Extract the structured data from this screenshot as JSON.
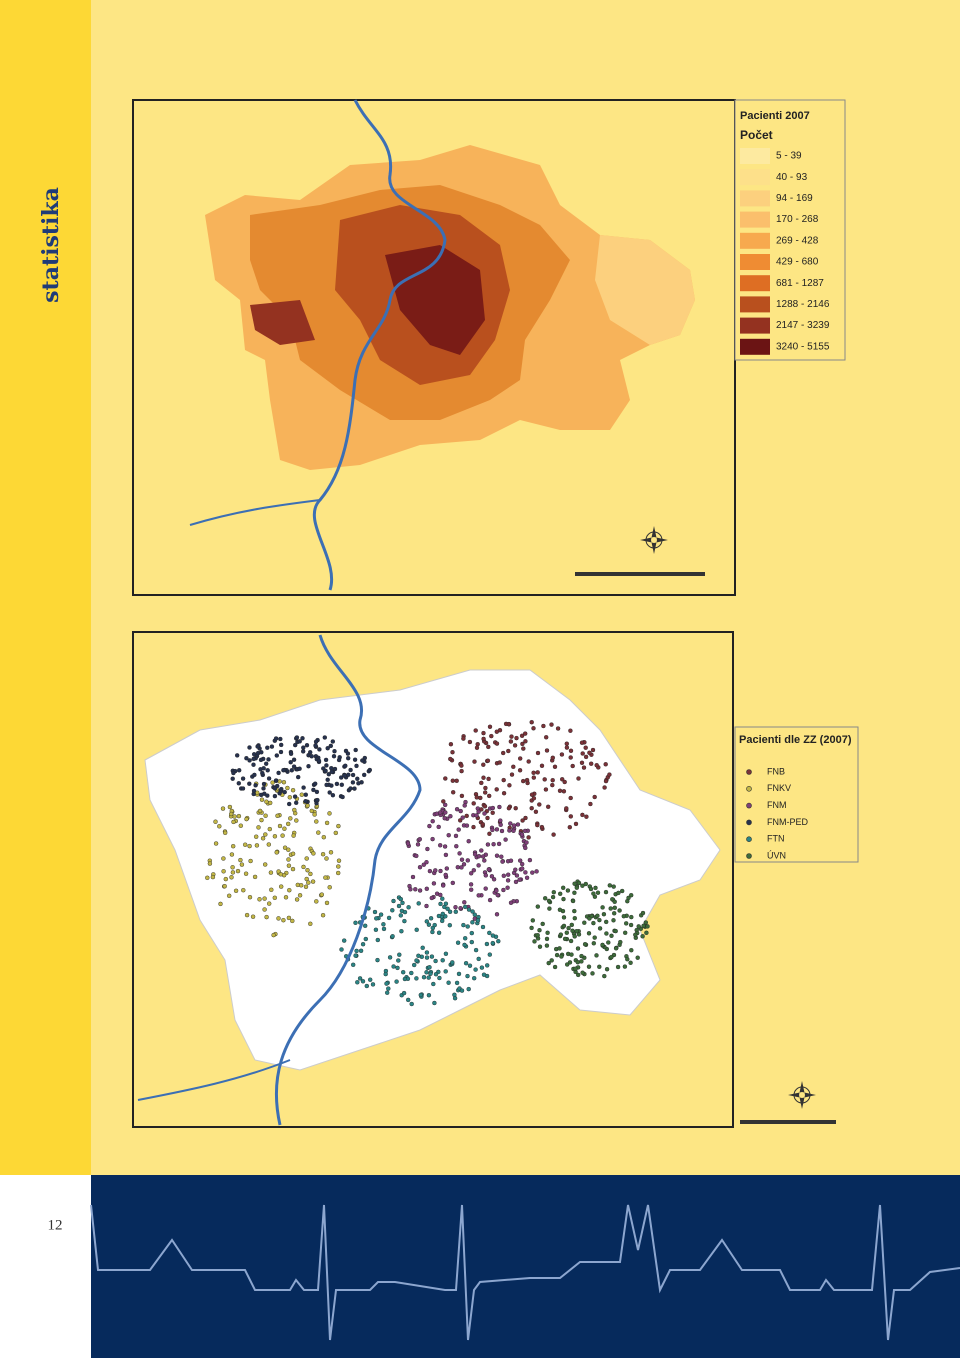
{
  "sidebar_title": "statistika",
  "page_number": "12",
  "map1": {
    "legend_title": "Pacienti 2007",
    "legend_subtitle": "Počet",
    "classes": [
      {
        "label": "5 - 39",
        "color": "#fdeaa0"
      },
      {
        "label": "40 - 93",
        "color": "#fde08a"
      },
      {
        "label": "94 - 169",
        "color": "#fcd07e"
      },
      {
        "label": "170 - 268",
        "color": "#fbbf6c"
      },
      {
        "label": "269 - 428",
        "color": "#f7a94e"
      },
      {
        "label": "429 - 680",
        "color": "#ef8c33"
      },
      {
        "label": "681 - 1287",
        "color": "#de6e23"
      },
      {
        "label": "1288 - 2146",
        "color": "#b9501e"
      },
      {
        "label": "2147 - 3239",
        "color": "#943220"
      },
      {
        "label": "3240 - 5155",
        "color": "#6b1414"
      }
    ]
  },
  "map2": {
    "legend_title": "Pacienti dle ZZ (2007)",
    "items": [
      {
        "label": "FNB",
        "color": "#7a3238"
      },
      {
        "label": "FNKV",
        "color": "#c2b646"
      },
      {
        "label": "FNM",
        "color": "#7e3f78"
      },
      {
        "label": "FNM-PED",
        "color": "#27324e"
      },
      {
        "label": "FTN",
        "color": "#2b8585"
      },
      {
        "label": "ÚVN",
        "color": "#3d6b3a"
      }
    ]
  }
}
